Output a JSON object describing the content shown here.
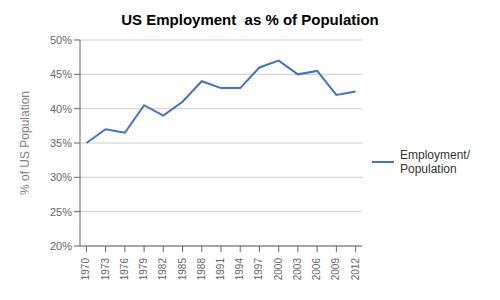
{
  "chart_data": {
    "type": "line",
    "title": "US Employment  as % of Population",
    "ylabel": "% of US Population",
    "x": [
      1970,
      1973,
      1976,
      1979,
      1982,
      1985,
      1988,
      1991,
      1994,
      1997,
      2000,
      2003,
      2006,
      2009,
      2012
    ],
    "series": [
      {
        "name": "Employment/\nPopulation",
        "color": "#4472C4",
        "values": [
          35.0,
          37.0,
          36.5,
          40.5,
          39.0,
          41.0,
          44.0,
          43.0,
          43.0,
          46.0,
          47.0,
          45.0,
          45.5,
          42.0,
          42.5
        ]
      }
    ],
    "xlim": [
      1969,
      2013
    ],
    "xticks": [
      1970,
      1973,
      1976,
      1979,
      1982,
      1985,
      1988,
      1991,
      1994,
      1997,
      2000,
      2003,
      2006,
      2009,
      2012
    ],
    "ylim": [
      20,
      50
    ],
    "yticks": [
      {
        "value": 20,
        "label": "20%"
      },
      {
        "value": 25,
        "label": "25%"
      },
      {
        "value": 30,
        "label": "30%"
      },
      {
        "value": 35,
        "label": "35%"
      },
      {
        "value": 40,
        "label": "40%"
      },
      {
        "value": 45,
        "label": "45%"
      },
      {
        "value": 50,
        "label": "50%"
      }
    ],
    "grid": true,
    "legend": "right"
  }
}
